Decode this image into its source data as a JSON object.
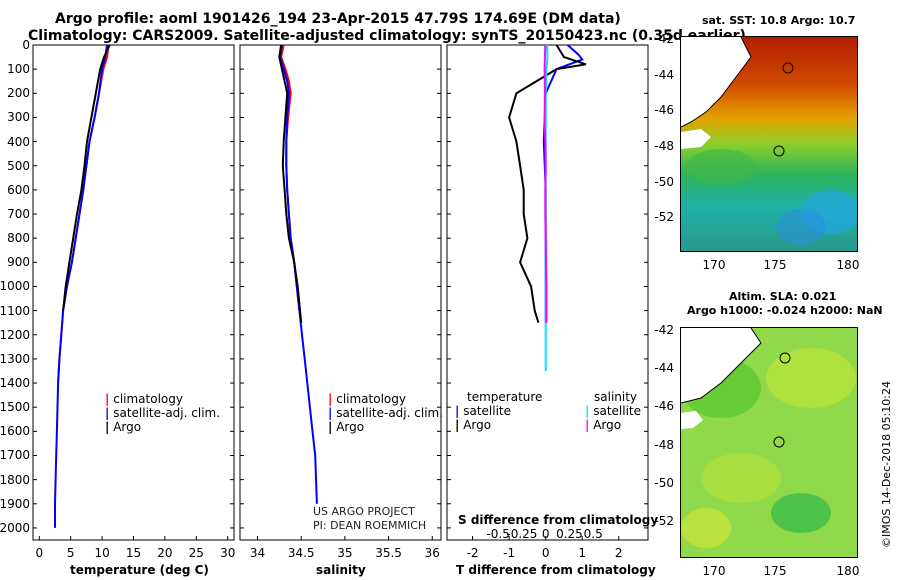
{
  "header": {
    "title_line1": "Argo profile: aoml 1901426_194 23-Apr-2015 47.79S 174.69E (DM data)",
    "title_line2": "Climatology: CARS2009. Satellite-adjusted climatology: synTS_20150423.nc (0.35d earlier)"
  },
  "depth_ticks": [
    "0",
    "100",
    "200",
    "300",
    "400",
    "500",
    "600",
    "700",
    "800",
    "900",
    "1000",
    "1100",
    "1200",
    "1300",
    "1400",
    "1500",
    "1600",
    "1700",
    "1800",
    "1900",
    "2000"
  ],
  "colors": {
    "climatology": "#ff0000",
    "satellite": "#0000ff",
    "argo": "#000000",
    "sat_diff": "#00e5ff",
    "argo_sdiff": "#ff00ff"
  },
  "panel_temp": {
    "xlabel": "temperature (deg C)",
    "xticks": [
      "0",
      "5",
      "10",
      "15",
      "20",
      "25",
      "30"
    ],
    "legend": [
      "climatology",
      "satellite-adj. clim.",
      "Argo"
    ]
  },
  "panel_sal": {
    "xlabel": "salinity",
    "xticks": [
      "34",
      "34.5",
      "35",
      "35.5",
      "36"
    ],
    "legend": [
      "climatology",
      "satellite-adj. clim.",
      "Argo"
    ],
    "credit1": "US ARGO PROJECT",
    "credit2": "PI: DEAN ROEMMICH"
  },
  "panel_diff": {
    "xlabel": "T difference from climatology",
    "xticks": [
      "-2",
      "-1",
      "0",
      "1",
      "2"
    ],
    "s_label": "S difference from climatology",
    "s_ticks": [
      "-0.5",
      "-0.25",
      "0",
      "0.25",
      "0.5"
    ],
    "legend_t_title": "temperature",
    "legend_t": [
      "satellite",
      "Argo"
    ],
    "legend_s_title": "salinity",
    "legend_s": [
      "satellite",
      "Argo"
    ]
  },
  "map_sst": {
    "title": "sat. SST: 10.8 Argo: 10.7",
    "yticks": [
      "-42",
      "-44",
      "-46",
      "-48",
      "-50",
      "-52"
    ],
    "xticks": [
      "170",
      "175",
      "180"
    ]
  },
  "map_sla": {
    "title1": "Altim. SLA: 0.021",
    "title2": "Argo h1000: -0.024 h2000: NaN",
    "yticks": [
      "-42",
      "-44",
      "-46",
      "-48",
      "-50",
      "-52"
    ],
    "xticks": [
      "170",
      "175",
      "180"
    ]
  },
  "footer": {
    "stamp": "©IMOS 14-Dec-2018 05:10:24"
  },
  "chart_data": [
    {
      "type": "line",
      "xlabel": "temperature (deg C)",
      "ylabel": "",
      "xlim": [
        -1,
        31
      ],
      "ylim": [
        2050,
        0
      ],
      "series": [
        {
          "name": "climatology",
          "x": [
            11.0,
            10.8,
            10.2,
            9.5,
            8.8,
            8.0,
            7.5,
            7.0,
            6.4,
            5.8,
            5.2,
            4.4,
            3.8,
            3.5,
            3.2,
            3.0
          ],
          "y": [
            0,
            50,
            100,
            200,
            300,
            400,
            500,
            600,
            700,
            800,
            900,
            1000,
            1100,
            1200,
            1300,
            1400
          ]
        },
        {
          "name": "satellite-adj. clim.",
          "x": [
            10.8,
            10.5,
            10.0,
            9.5,
            8.8,
            8.0,
            7.5,
            7.0,
            6.4,
            5.8,
            5.2,
            4.4,
            3.8,
            3.5,
            3.2,
            3.0,
            2.9,
            2.8,
            2.7,
            2.6,
            2.5,
            2.5
          ],
          "y": [
            0,
            50,
            100,
            200,
            300,
            400,
            500,
            600,
            700,
            800,
            900,
            1000,
            1100,
            1200,
            1300,
            1400,
            1500,
            1600,
            1700,
            1800,
            1900,
            2000
          ]
        },
        {
          "name": "Argo",
          "x": [
            11.2,
            10.3,
            9.7,
            9.0,
            8.3,
            7.6,
            7.2,
            6.7,
            6.0,
            5.4,
            4.8,
            4.2,
            3.8
          ],
          "y": [
            0,
            50,
            100,
            200,
            300,
            400,
            500,
            600,
            700,
            800,
            900,
            1000,
            1100
          ]
        }
      ]
    },
    {
      "type": "line",
      "xlabel": "salinity",
      "ylabel": "",
      "xlim": [
        33.8,
        36.1
      ],
      "ylim": [
        2050,
        0
      ],
      "series": [
        {
          "name": "climatology",
          "x": [
            34.3,
            34.27,
            34.32,
            34.36,
            34.38,
            34.35,
            34.33,
            34.33,
            34.34,
            34.36,
            34.38,
            34.42,
            34.45,
            34.48
          ],
          "y": [
            0,
            50,
            100,
            150,
            200,
            300,
            400,
            500,
            600,
            700,
            800,
            900,
            1000,
            1100
          ]
        },
        {
          "name": "satellite-adj. clim.",
          "x": [
            34.28,
            34.26,
            34.3,
            34.34,
            34.36,
            34.34,
            34.33,
            34.33,
            34.34,
            34.36,
            34.38,
            34.42,
            34.45,
            34.48,
            34.51,
            34.54,
            34.57,
            34.6,
            34.63,
            34.66,
            34.68
          ],
          "y": [
            0,
            50,
            100,
            150,
            200,
            300,
            400,
            500,
            600,
            700,
            800,
            900,
            1000,
            1100,
            1200,
            1300,
            1400,
            1500,
            1600,
            1700,
            1900
          ]
        },
        {
          "name": "Argo",
          "x": [
            34.27,
            34.25,
            34.28,
            34.31,
            34.34,
            34.32,
            34.3,
            34.29,
            34.31,
            34.33,
            34.36,
            34.42,
            34.46,
            34.5
          ],
          "y": [
            0,
            50,
            100,
            150,
            200,
            300,
            400,
            500,
            600,
            700,
            800,
            900,
            1000,
            1150
          ]
        }
      ]
    },
    {
      "type": "line",
      "xlabel": "T difference from climatology",
      "ylabel": "",
      "xlim": [
        -2.7,
        2.8
      ],
      "ylim": [
        2050,
        0
      ],
      "series": [
        {
          "name": "temperature satellite",
          "x": [
            0.6,
            0.9,
            1.0,
            0.3,
            0.0,
            -0.05,
            0.0,
            0.0,
            0.0,
            0.0,
            0.0,
            0.0
          ],
          "y": [
            0,
            40,
            60,
            100,
            200,
            400,
            600,
            800,
            900,
            1000,
            1100,
            1150
          ]
        },
        {
          "name": "temperature Argo",
          "x": [
            0.3,
            0.5,
            1.1,
            0.3,
            -0.8,
            -1.0,
            -0.8,
            -0.7,
            -0.6,
            -0.6,
            -0.5,
            -0.7,
            -0.4,
            -0.3,
            -0.2
          ],
          "y": [
            0,
            50,
            80,
            100,
            200,
            300,
            400,
            500,
            600,
            700,
            800,
            900,
            1000,
            1100,
            1150
          ]
        },
        {
          "name": "salinity satellite",
          "x": [
            0.04,
            0.05,
            0.02,
            0.0,
            0.0,
            0.0,
            0.0,
            0.0,
            0.0,
            0.0,
            0.0,
            0.0,
            0.0
          ],
          "y": [
            0,
            50,
            100,
            200,
            400,
            600,
            800,
            1000,
            1100,
            1200,
            1250,
            1300,
            1350
          ]
        },
        {
          "name": "salinity Argo",
          "x": [
            -0.01,
            -0.03,
            -0.02,
            -0.03,
            -0.01,
            0.0,
            -0.01,
            -0.01,
            0.0,
            0.01,
            0.02,
            0.02
          ],
          "y": [
            0,
            100,
            200,
            300,
            400,
            500,
            600,
            700,
            800,
            900,
            1000,
            1150
          ]
        }
      ]
    }
  ]
}
